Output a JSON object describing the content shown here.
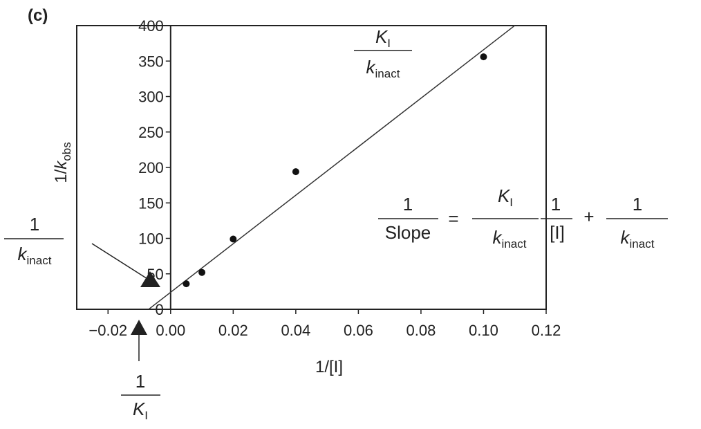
{
  "panel_label": "(c)",
  "chart_data": {
    "type": "scatter",
    "xlabel": "1/[I]",
    "ylabel": {
      "prefix": "1/",
      "var": "k",
      "sub": "obs"
    },
    "xlim": [
      -0.03,
      0.12
    ],
    "ylim": [
      0,
      400
    ],
    "x_ticks": [
      -0.02,
      0.0,
      0.02,
      0.04,
      0.06,
      0.08,
      0.1,
      0.12
    ],
    "x_tick_labels": [
      "−0.02",
      "0.00",
      "0.02",
      "0.04",
      "0.06",
      "0.08",
      "0.10",
      "0.12"
    ],
    "y_ticks": [
      0,
      50,
      100,
      150,
      200,
      250,
      300,
      350,
      400
    ],
    "y_tick_labels": [
      "0",
      "50",
      "100",
      "150",
      "200",
      "250",
      "300",
      "350",
      "400"
    ],
    "points": [
      {
        "x": 0.005,
        "y": 36
      },
      {
        "x": 0.01,
        "y": 52
      },
      {
        "x": 0.02,
        "y": 99
      },
      {
        "x": 0.04,
        "y": 194
      },
      {
        "x": 0.1,
        "y": 356
      }
    ],
    "fit_line": {
      "slope": 3420,
      "intercept": 24,
      "x_range": [
        -0.007,
        0.11
      ]
    },
    "grid": false,
    "annotations": {
      "slope_label": {
        "num_var": "K",
        "num_sub": "I",
        "den_var": "k",
        "den_sub": "inact"
      },
      "y_intercept_label": {
        "num": "1",
        "den_var": "k",
        "den_sub": "inact"
      },
      "x_intercept_label": {
        "num": "1",
        "den_var": "K",
        "den_sub": "I"
      },
      "equation": {
        "lhs_num": "1",
        "lhs_den": "Slope",
        "equals": "=",
        "t1_num_var": "K",
        "t1_num_sub": "I",
        "t1_den_var": "k",
        "t1_den_sub": "inact",
        "t2_num": "1",
        "t2_den": "[I]",
        "plus": "+",
        "t3_num": "1",
        "t3_den_var": "k",
        "t3_den_sub": "inact"
      }
    }
  }
}
